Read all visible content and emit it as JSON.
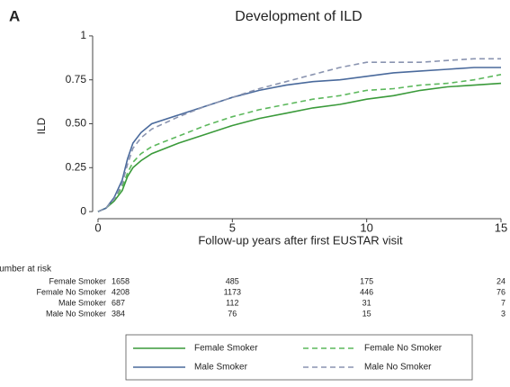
{
  "chart_data": {
    "type": "line",
    "panel_label": "A",
    "title": "Development of ILD",
    "y_label": "ILD",
    "x_label": "Follow-up years after first EUSTAR visit",
    "x": [
      0,
      0.3,
      0.6,
      0.9,
      1.1,
      1.3,
      1.6,
      2,
      3,
      4,
      5,
      6,
      7,
      8,
      9,
      10,
      11,
      12,
      13,
      14,
      15
    ],
    "xlim": [
      -0.2,
      15.1
    ],
    "ylim": [
      -0.02,
      1.02
    ],
    "xticks": [
      0,
      5,
      10,
      15
    ],
    "yticks": [
      0,
      0.25,
      {
        "value": 0.5,
        "label": "0.50"
      },
      0.75,
      1
    ],
    "grid": false,
    "series": [
      {
        "name": "Female Smoker",
        "color": "#3a9a3a",
        "dashed": false,
        "values": [
          0,
          0.02,
          0.06,
          0.12,
          0.2,
          0.25,
          0.29,
          0.33,
          0.39,
          0.44,
          0.49,
          0.53,
          0.56,
          0.59,
          0.61,
          0.64,
          0.66,
          0.69,
          0.71,
          0.72,
          0.73
        ],
        "at_risk": [
          1658,
          485,
          175,
          24
        ]
      },
      {
        "name": "Female No Smoker",
        "color": "#5cb85c",
        "dashed": true,
        "values": [
          0,
          0.02,
          0.07,
          0.14,
          0.22,
          0.28,
          0.33,
          0.37,
          0.43,
          0.49,
          0.54,
          0.58,
          0.61,
          0.64,
          0.66,
          0.69,
          0.7,
          0.72,
          0.73,
          0.75,
          0.78
        ],
        "at_risk": [
          4208,
          1173,
          446,
          76
        ]
      },
      {
        "name": "Male Smoker",
        "color": "#4a6a9c",
        "dashed": false,
        "values": [
          0,
          0.02,
          0.08,
          0.18,
          0.3,
          0.39,
          0.45,
          0.5,
          0.55,
          0.6,
          0.65,
          0.69,
          0.72,
          0.74,
          0.75,
          0.77,
          0.79,
          0.8,
          0.81,
          0.82,
          0.82
        ],
        "at_risk": [
          687,
          112,
          31,
          7
        ]
      },
      {
        "name": "Male No Smoker",
        "color": "#8a94b0",
        "dashed": true,
        "values": [
          0,
          0.02,
          0.07,
          0.16,
          0.27,
          0.36,
          0.42,
          0.47,
          0.54,
          0.6,
          0.65,
          0.7,
          0.74,
          0.78,
          0.82,
          0.85,
          0.85,
          0.85,
          0.86,
          0.87,
          0.87
        ],
        "at_risk": [
          384,
          76,
          15,
          3
        ]
      }
    ],
    "risk_table_title": "Number at risk"
  }
}
